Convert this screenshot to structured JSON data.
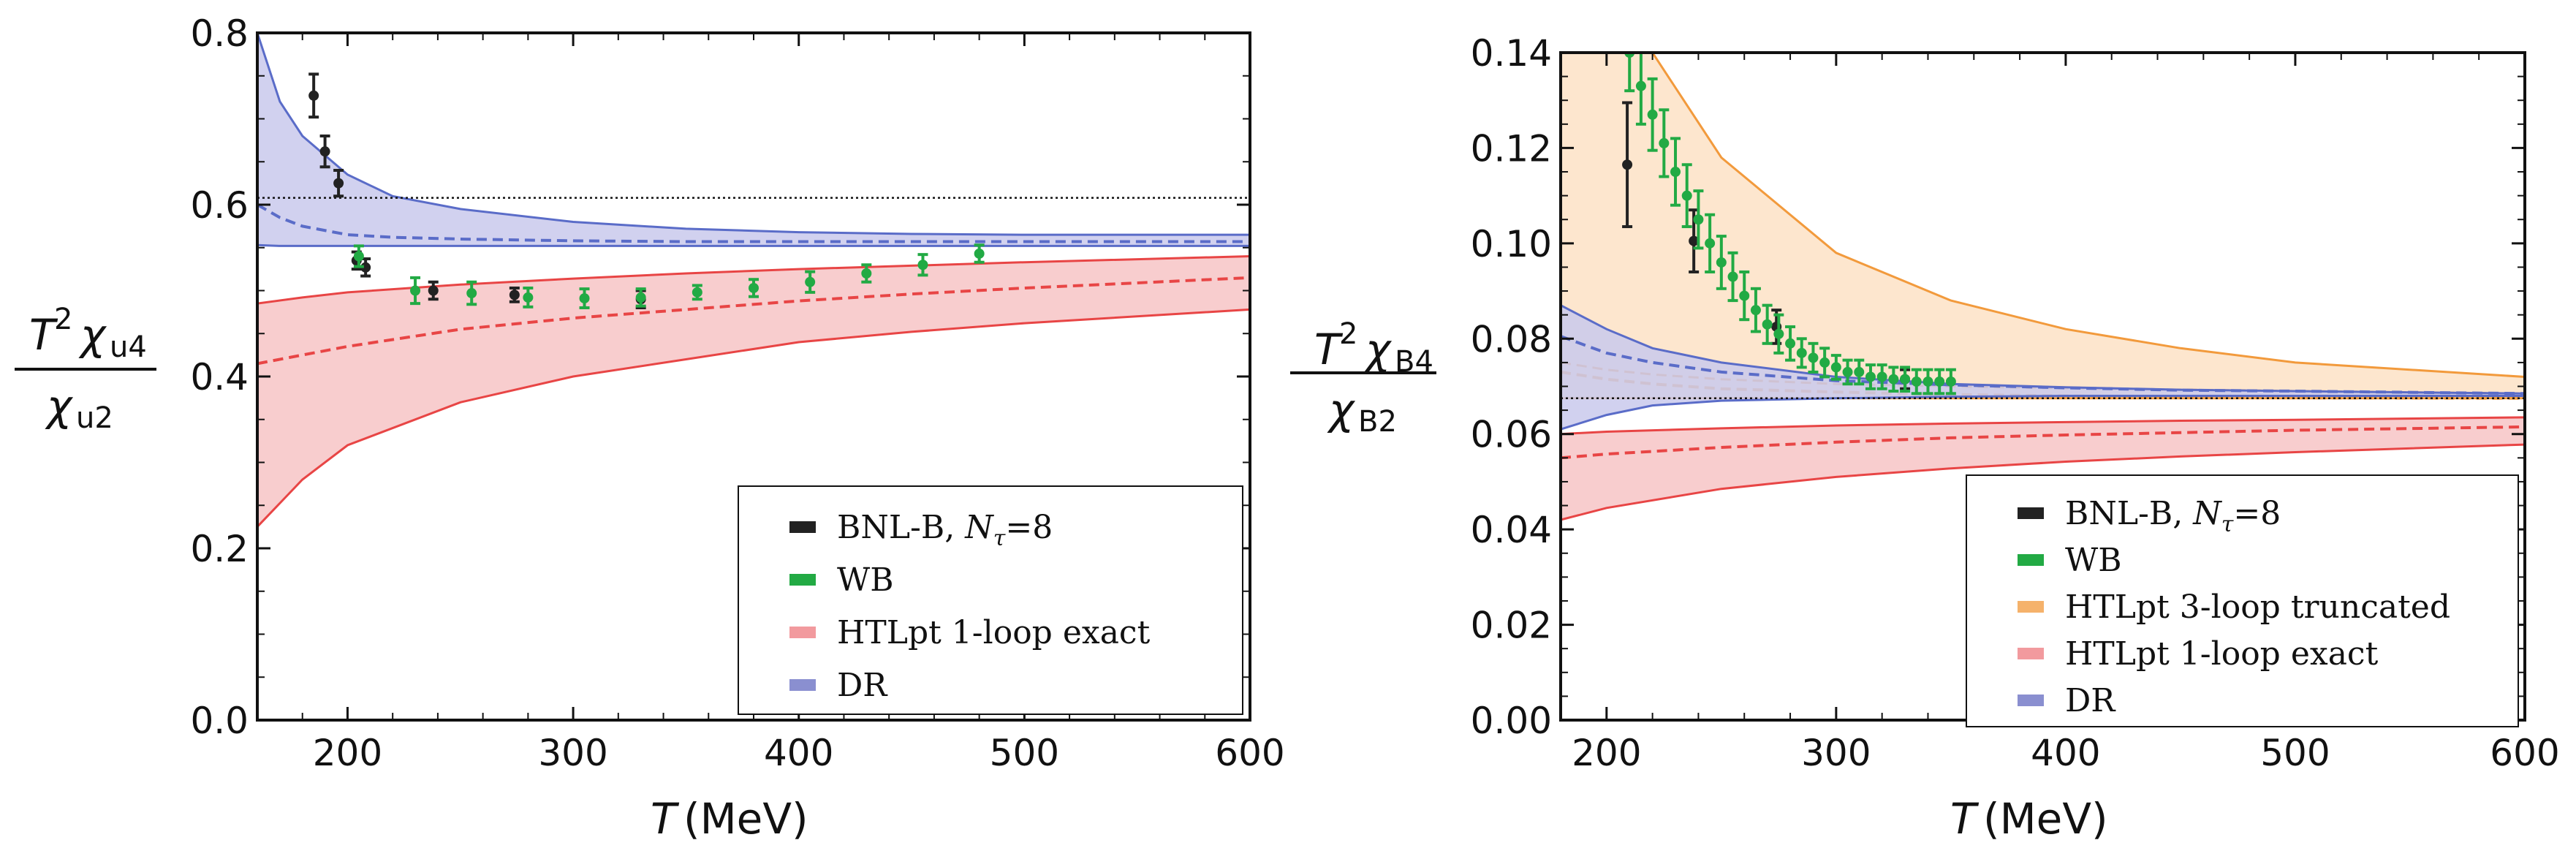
{
  "chart_data": [
    {
      "type": "line",
      "panel": "left",
      "xlabel": "T (MeV)",
      "ylabel": "T² χ_u4 / χ_u2",
      "xlim": [
        160,
        600
      ],
      "ylim": [
        0.0,
        0.8
      ],
      "xticks": [
        "200",
        "300",
        "400",
        "500",
        "600"
      ],
      "yticks": [
        "0.0",
        "0.2",
        "0.4",
        "0.6",
        "0.8"
      ],
      "reference_line": 0.608,
      "bands": [
        {
          "name": "DR",
          "color": "#5a6cc8",
          "fill": "#c9c9ec",
          "x": [
            160,
            170,
            180,
            200,
            220,
            250,
            300,
            350,
            400,
            450,
            500,
            600
          ],
          "upper": [
            0.8,
            0.72,
            0.68,
            0.635,
            0.61,
            0.595,
            0.58,
            0.572,
            0.568,
            0.566,
            0.565,
            0.565
          ],
          "lower": [
            0.553,
            0.552,
            0.552,
            0.552,
            0.552,
            0.552,
            0.552,
            0.552,
            0.552,
            0.552,
            0.552,
            0.552
          ],
          "central": [
            0.6,
            0.585,
            0.575,
            0.565,
            0.562,
            0.56,
            0.558,
            0.557,
            0.557,
            0.557,
            0.557,
            0.557
          ]
        },
        {
          "name": "HTLpt 1-loop exact",
          "color": "#e84545",
          "fill": "#f7c4c6",
          "x": [
            160,
            180,
            200,
            250,
            300,
            350,
            400,
            450,
            500,
            600
          ],
          "upper": [
            0.485,
            0.492,
            0.498,
            0.507,
            0.514,
            0.52,
            0.525,
            0.529,
            0.533,
            0.54
          ],
          "lower": [
            0.225,
            0.28,
            0.32,
            0.37,
            0.4,
            0.42,
            0.44,
            0.452,
            0.462,
            0.478
          ],
          "central": [
            0.415,
            0.425,
            0.435,
            0.455,
            0.468,
            0.478,
            0.488,
            0.496,
            0.503,
            0.515
          ]
        }
      ],
      "points": [
        {
          "name": "BNL-B, Nτ=8",
          "color": "#222222",
          "x": [
            185,
            190,
            196,
            204,
            208,
            238,
            274,
            330
          ],
          "y": [
            0.727,
            0.662,
            0.625,
            0.535,
            0.527,
            0.5,
            0.495,
            0.49
          ],
          "err": [
            0.025,
            0.018,
            0.015,
            0.01,
            0.01,
            0.01,
            0.008,
            0.01
          ]
        },
        {
          "name": "WB",
          "color": "#22aa44",
          "x": [
            205,
            230,
            255,
            280,
            305,
            330,
            355,
            380,
            405,
            430,
            455,
            480
          ],
          "y": [
            0.54,
            0.5,
            0.497,
            0.492,
            0.491,
            0.492,
            0.498,
            0.503,
            0.51,
            0.52,
            0.53,
            0.543
          ],
          "err": [
            0.012,
            0.015,
            0.013,
            0.011,
            0.011,
            0.01,
            0.008,
            0.01,
            0.012,
            0.01,
            0.012,
            0.01
          ]
        }
      ],
      "legend": {
        "position": "bottom-right",
        "entries": [
          {
            "label": "BNL-B, ",
            "label_symbol": "N",
            "label_sub": "τ",
            "label_tail": "=8",
            "color": "#222222"
          },
          {
            "label": "WB",
            "color": "#22aa44"
          },
          {
            "label": "HTLpt 1-loop exact",
            "color": "#f29a9e"
          },
          {
            "label": "DR",
            "color": "#8a8fd0"
          }
        ]
      }
    },
    {
      "type": "line",
      "panel": "right",
      "xlabel": "T (MeV)",
      "ylabel": "T² χ_B4 / χ_B2",
      "xlim": [
        180,
        600
      ],
      "ylim": [
        0.0,
        0.14
      ],
      "xticks": [
        "200",
        "300",
        "400",
        "500",
        "600"
      ],
      "yticks": [
        "0.00",
        "0.02",
        "0.04",
        "0.06",
        "0.08",
        "0.10",
        "0.12",
        "0.14"
      ],
      "reference_line": 0.0675,
      "bands": [
        {
          "name": "HTLpt 3-loop truncated",
          "color": "#f29a3c",
          "fill": "#fde2c6",
          "x": [
            180,
            200,
            220,
            250,
            300,
            350,
            400,
            450,
            500,
            600
          ],
          "upper": [
            0.2,
            0.17,
            0.14,
            0.118,
            0.098,
            0.088,
            0.082,
            0.078,
            0.075,
            0.072
          ],
          "lower": [
            0.0675,
            0.0675,
            0.0675,
            0.0675,
            0.0675,
            0.0675,
            0.0675,
            0.0675,
            0.0675,
            0.0675
          ],
          "central": [
            0.073,
            0.0715,
            0.0705,
            0.0695,
            0.0688,
            0.0683,
            0.068,
            0.0678,
            0.0676,
            0.0675
          ],
          "extra_line": [
            0.075,
            0.0735,
            0.0725,
            0.0715,
            0.0705,
            0.07,
            0.0696,
            0.0693,
            0.069,
            0.0685
          ]
        },
        {
          "name": "DR",
          "color": "#5a6cc8",
          "fill": "#c9c9ec",
          "x": [
            180,
            200,
            220,
            250,
            300,
            350,
            400,
            450,
            500,
            600
          ],
          "upper": [
            0.087,
            0.082,
            0.078,
            0.075,
            0.072,
            0.0705,
            0.0698,
            0.0693,
            0.069,
            0.0685
          ],
          "lower": [
            0.061,
            0.064,
            0.066,
            0.067,
            0.0675,
            0.0678,
            0.068,
            0.068,
            0.068,
            0.068
          ],
          "central": [
            0.0805,
            0.077,
            0.075,
            0.073,
            0.0712,
            0.0703,
            0.0697,
            0.0692,
            0.069,
            0.0685
          ]
        },
        {
          "name": "HTLpt 1-loop exact",
          "color": "#e84545",
          "fill": "#f7c4c6",
          "x": [
            180,
            200,
            250,
            300,
            350,
            400,
            450,
            500,
            600
          ],
          "upper": [
            0.06,
            0.0605,
            0.0612,
            0.0618,
            0.0622,
            0.0625,
            0.0628,
            0.063,
            0.0635
          ],
          "lower": [
            0.042,
            0.0445,
            0.0485,
            0.051,
            0.0528,
            0.0542,
            0.0553,
            0.0562,
            0.0578
          ],
          "central": [
            0.055,
            0.0558,
            0.0572,
            0.0583,
            0.0592,
            0.0598,
            0.0603,
            0.0608,
            0.0615
          ]
        }
      ],
      "points": [
        {
          "name": "BNL-B, Nτ=8",
          "color": "#222222",
          "x": [
            209,
            238,
            274,
            330
          ],
          "y": [
            0.1165,
            0.1005,
            0.0825,
            0.0715
          ],
          "err": [
            0.013,
            0.0065,
            0.0035,
            0.002
          ]
        },
        {
          "name": "WB",
          "color": "#22aa44",
          "x": [
            210,
            215,
            220,
            225,
            230,
            235,
            240,
            245,
            250,
            255,
            260,
            265,
            270,
            275,
            280,
            285,
            290,
            295,
            300,
            305,
            310,
            315,
            320,
            325,
            330,
            335,
            340,
            345,
            350
          ],
          "y": [
            0.14,
            0.133,
            0.127,
            0.121,
            0.115,
            0.11,
            0.105,
            0.1,
            0.096,
            0.093,
            0.089,
            0.086,
            0.083,
            0.081,
            0.079,
            0.077,
            0.076,
            0.075,
            0.074,
            0.073,
            0.073,
            0.072,
            0.072,
            0.0715,
            0.0715,
            0.071,
            0.071,
            0.071,
            0.071
          ],
          "err": [
            0.008,
            0.008,
            0.0075,
            0.007,
            0.007,
            0.0065,
            0.006,
            0.006,
            0.0055,
            0.005,
            0.005,
            0.0045,
            0.004,
            0.004,
            0.0035,
            0.003,
            0.003,
            0.003,
            0.0025,
            0.0025,
            0.0025,
            0.0025,
            0.0025,
            0.0025,
            0.0025,
            0.0025,
            0.0025,
            0.0025,
            0.0025
          ]
        }
      ],
      "legend": {
        "position": "bottom-right",
        "entries": [
          {
            "label": "BNL-B, ",
            "label_symbol": "N",
            "label_sub": "τ",
            "label_tail": "=8",
            "color": "#222222"
          },
          {
            "label": "WB",
            "color": "#22aa44"
          },
          {
            "label": "HTLpt 3-loop truncated",
            "color": "#f5b26b"
          },
          {
            "label": "HTLpt 1-loop exact",
            "color": "#f29a9e"
          },
          {
            "label": "DR",
            "color": "#8a8fd0"
          }
        ]
      }
    }
  ],
  "ylabel_parts": [
    {
      "sup": "2",
      "T": "T",
      "chi": "χ",
      "num_sub": "u4",
      "den_sub": "u2"
    },
    {
      "sup": "2",
      "T": "T",
      "chi": "χ",
      "num_sub": "B4",
      "den_sub": "B2"
    }
  ],
  "xlabel_parts": {
    "var": "T",
    "unit": "(MeV)"
  }
}
